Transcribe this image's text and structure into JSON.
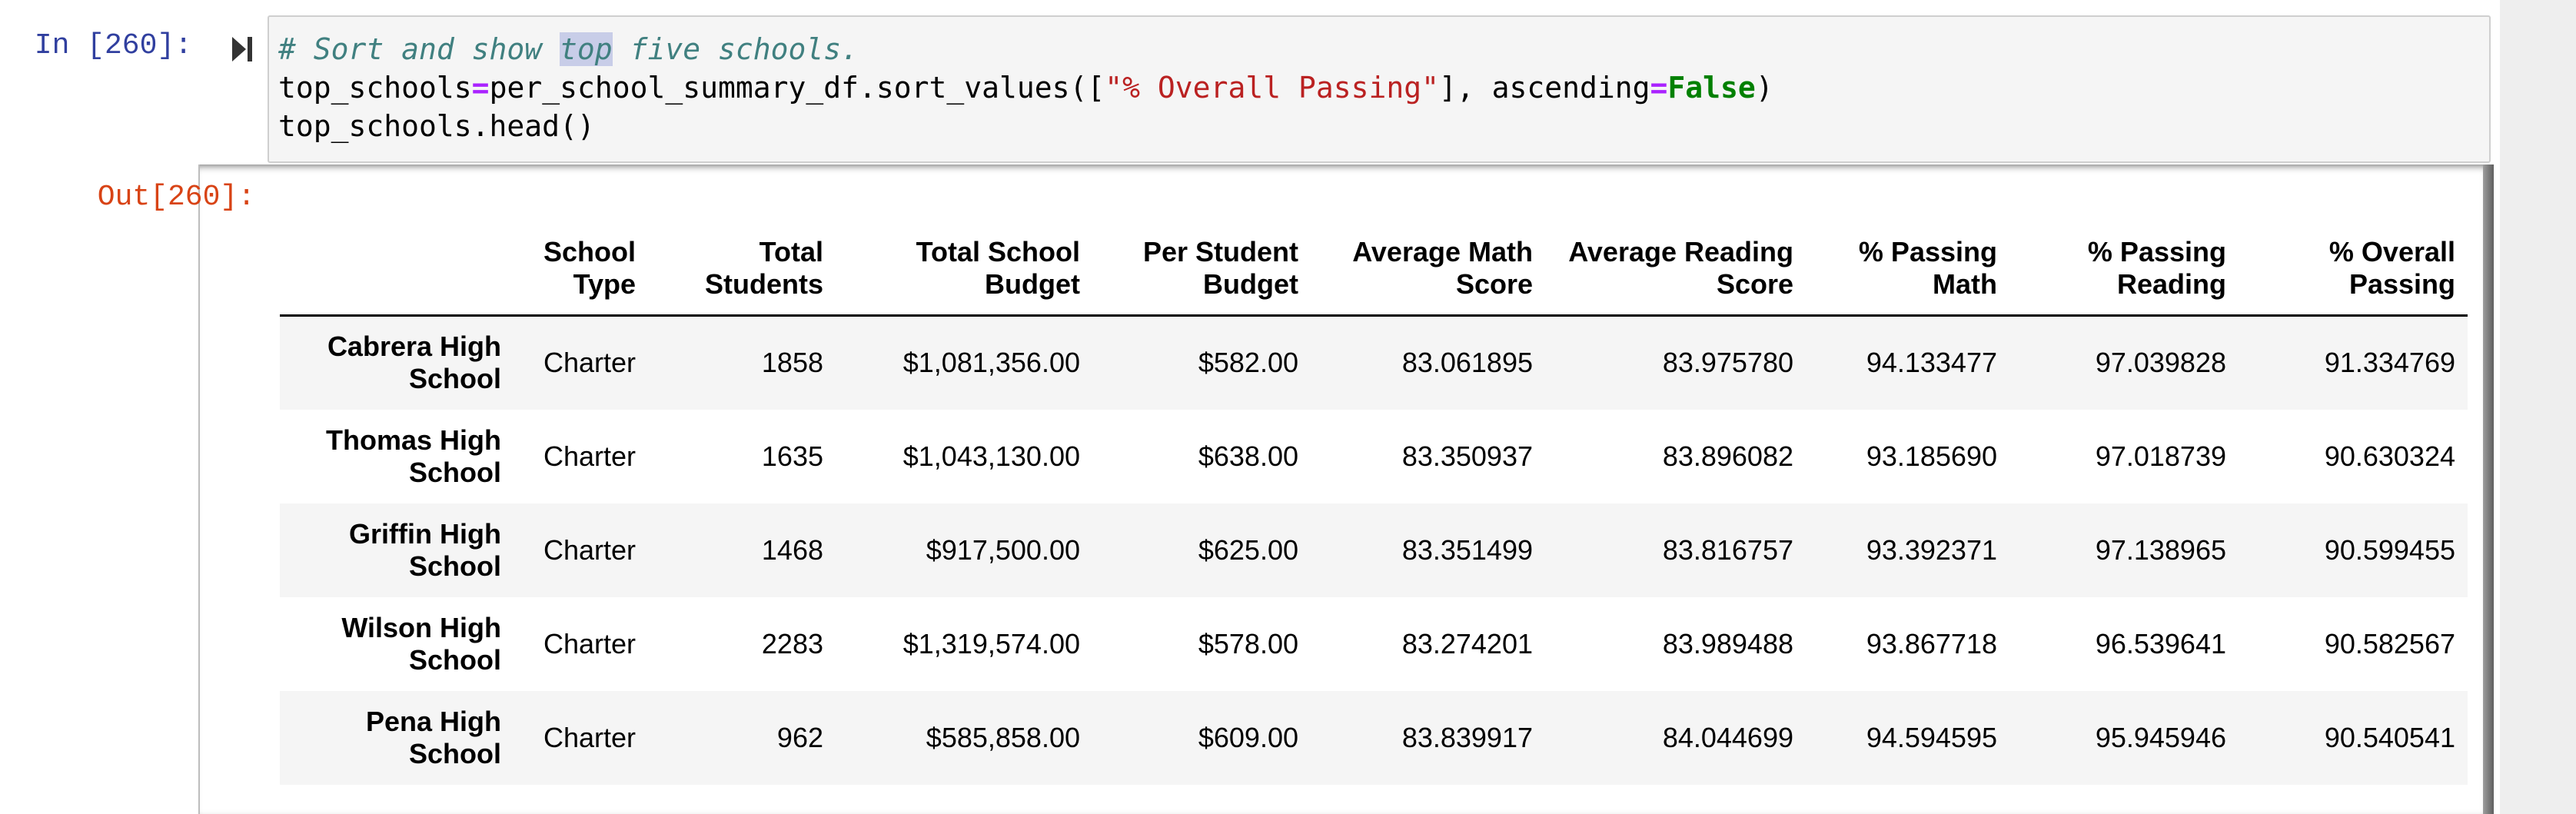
{
  "input_cell": {
    "prompt": "In [260]:",
    "code": {
      "line1_comment_pre": "# Sort and show ",
      "line1_comment_highlight": "top",
      "line1_comment_post": " five schools.",
      "line2_var": "top_schools",
      "line2_eq": "=",
      "line2_call": "per_school_summary_df.sort_values([",
      "line2_string": "\"% Overall Passing\"",
      "line2_mid": "], ascending",
      "line2_eq2": "=",
      "line2_kw": "False",
      "line2_end": ")",
      "line3": "top_schools.head()"
    },
    "run_icon": "run-cell-icon"
  },
  "output_cell": {
    "prompt": "Out[260]:",
    "table": {
      "columns": [
        {
          "line1": "",
          "line2": ""
        },
        {
          "line1": "School",
          "line2": "Type"
        },
        {
          "line1": "Total",
          "line2": "Students"
        },
        {
          "line1": "Total School",
          "line2": "Budget"
        },
        {
          "line1": "Per Student",
          "line2": "Budget"
        },
        {
          "line1": "Average Math",
          "line2": "Score"
        },
        {
          "line1": "Average Reading",
          "line2": "Score"
        },
        {
          "line1": "% Passing",
          "line2": "Math"
        },
        {
          "line1": "% Passing",
          "line2": "Reading"
        },
        {
          "line1": "% Overall",
          "line2": "Passing"
        }
      ],
      "rows": [
        {
          "name1": "Cabrera High",
          "name2": "School",
          "cells": [
            "Charter",
            "1858",
            "$1,081,356.00",
            "$582.00",
            "83.061895",
            "83.975780",
            "94.133477",
            "97.039828",
            "91.334769"
          ]
        },
        {
          "name1": "Thomas High",
          "name2": "School",
          "cells": [
            "Charter",
            "1635",
            "$1,043,130.00",
            "$638.00",
            "83.350937",
            "83.896082",
            "93.185690",
            "97.018739",
            "90.630324"
          ]
        },
        {
          "name1": "Griffin High",
          "name2": "School",
          "cells": [
            "Charter",
            "1468",
            "$917,500.00",
            "$625.00",
            "83.351499",
            "83.816757",
            "93.392371",
            "97.138965",
            "90.599455"
          ]
        },
        {
          "name1": "Wilson High",
          "name2": "School",
          "cells": [
            "Charter",
            "2283",
            "$1,319,574.00",
            "$578.00",
            "83.274201",
            "83.989488",
            "93.867718",
            "96.539641",
            "90.582567"
          ]
        },
        {
          "name1": "Pena High",
          "name2": "School",
          "cells": [
            "Charter",
            "962",
            "$585,858.00",
            "$609.00",
            "83.839917",
            "84.044699",
            "94.594595",
            "95.945946",
            "90.540541"
          ]
        }
      ]
    }
  }
}
